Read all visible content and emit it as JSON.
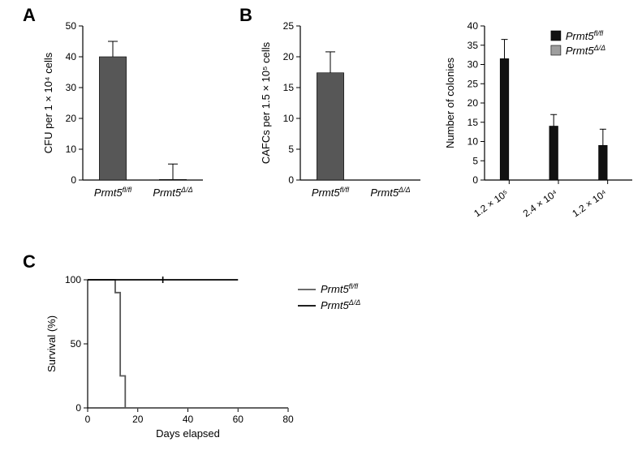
{
  "panelA": {
    "label": "A",
    "type": "bar",
    "y_title": "CFU per 1 × 10⁴ cells",
    "ylim": [
      0,
      50
    ],
    "ytick_step": 10,
    "bars": [
      {
        "category": "Prmt5ᶠˡ/ᶠˡ",
        "value": 40,
        "error": 5,
        "color": "#575757"
      },
      {
        "category": "Prmt5ᴰ/ᴰ",
        "value": 0.2,
        "error": 5,
        "color": "#575757"
      }
    ],
    "bar_width": 0.45,
    "error_cap": 6,
    "axis_color": "#000000",
    "background": "#ffffff"
  },
  "panelB_left": {
    "label": "B",
    "type": "bar",
    "y_title": "CAFCs per 1.5 × 10⁵ cells",
    "ylim": [
      0,
      25
    ],
    "ytick_step": 5,
    "bars": [
      {
        "category": "Prmt5ᶠˡ/ᶠˡ",
        "value": 17.4,
        "error": 3.4,
        "color": "#575757"
      },
      {
        "category": "Prmt5ᴰ/ᴰ",
        "value": 0,
        "error": 0,
        "color": "#575757"
      }
    ],
    "bar_width": 0.45,
    "error_cap": 6,
    "axis_color": "#000000",
    "background": "#ffffff"
  },
  "panelB_right": {
    "type": "grouped_bar",
    "y_title": "Number of colonies",
    "ylim": [
      0,
      40
    ],
    "ytick_step": 5,
    "categories": [
      "1.2 × 10⁵",
      "2.4 × 10⁴",
      "1.2 × 10⁴"
    ],
    "series": [
      {
        "name": "Prmt5ᶠˡ/ᶠˡ",
        "color": "#111111",
        "values": [
          31.5,
          14.0,
          9.0
        ],
        "errors": [
          5.0,
          3.0,
          4.2
        ]
      },
      {
        "name": "Prmt5ᴰ/ᴰ",
        "color": "#9e9e9e",
        "values": [
          0,
          0,
          0
        ],
        "errors": [
          0,
          0,
          0
        ]
      }
    ],
    "bar_width": 0.35,
    "group_gap": 0.15,
    "error_cap": 4,
    "axis_color": "#000000",
    "background": "#ffffff",
    "x_label_rotation": -35
  },
  "panelC": {
    "label": "C",
    "type": "survival",
    "y_title": "Survival (%)",
    "x_title": "Days elapsed",
    "ylim": [
      0,
      100
    ],
    "ytick_step": 50,
    "xlim": [
      0,
      80
    ],
    "xtick_step": 20,
    "lines": [
      {
        "name": "Prmt5ᶠˡ/ᶠˡ",
        "color": "#575757",
        "points": [
          [
            0,
            100
          ],
          [
            11,
            100
          ],
          [
            11,
            90
          ],
          [
            13,
            90
          ],
          [
            13,
            25
          ],
          [
            15,
            25
          ],
          [
            15,
            0
          ],
          [
            80,
            0
          ]
        ],
        "censor": []
      },
      {
        "name": "Prmt5ᴰ/ᴰ",
        "color": "#000000",
        "points": [
          [
            0,
            100
          ],
          [
            60,
            100
          ]
        ],
        "censor": [
          [
            30,
            100
          ]
        ]
      }
    ],
    "axis_color": "#000000",
    "background": "#ffffff",
    "line_width": 1.8
  },
  "genotype_labels": {
    "flfl": "Prmt5",
    "flfl_sup": "fl/fl",
    "dd": "Prmt5",
    "dd_sup": "Δ/Δ"
  }
}
